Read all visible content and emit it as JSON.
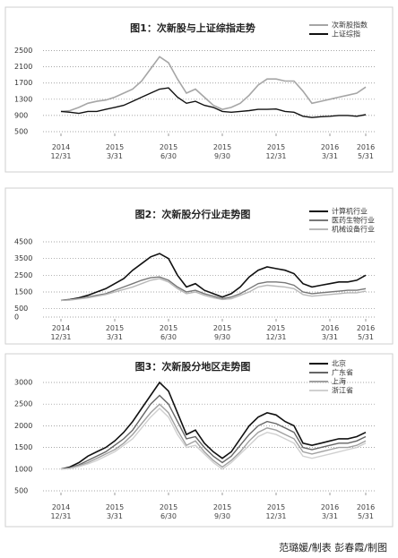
{
  "chart_data": [
    {
      "type": "line",
      "title": "图1：次新股与上证综指走势",
      "x": [
        0,
        0.5,
        1,
        1.5,
        2,
        2.5,
        3,
        3.5,
        4,
        4.5,
        5,
        5.5,
        6,
        6.5,
        7,
        7.5,
        8,
        8.5,
        9,
        9.5,
        10,
        10.5,
        11,
        11.5,
        12,
        12.5,
        13,
        13.5,
        14,
        14.5,
        15,
        15.5,
        16,
        16.5,
        17
      ],
      "xlim": [
        -1,
        17.5
      ],
      "xticks": [
        {
          "value": 0,
          "label": "2014 12/31"
        },
        {
          "value": 3,
          "label": "2015 3/31"
        },
        {
          "value": 6,
          "label": "2015 6/30"
        },
        {
          "value": 9,
          "label": "2015 9/30"
        },
        {
          "value": 12,
          "label": "2015 12/31"
        },
        {
          "value": 15,
          "label": "2016 3/31"
        },
        {
          "value": 17,
          "label": "2016 5/31"
        }
      ],
      "ylim": [
        500,
        2600
      ],
      "yticks": [
        2500,
        2100,
        1700,
        1300,
        900,
        500
      ],
      "grid": true,
      "legend": "top-right",
      "series": [
        {
          "name": "次新股指数",
          "color": "#a6a6a6",
          "values": [
            1000,
            1020,
            1100,
            1200,
            1250,
            1280,
            1350,
            1450,
            1550,
            1750,
            2050,
            2350,
            2200,
            1800,
            1450,
            1550,
            1350,
            1150,
            1050,
            1100,
            1200,
            1400,
            1650,
            1800,
            1800,
            1750,
            1750,
            1500,
            1200,
            1250,
            1300,
            1350,
            1400,
            1450,
            1600
          ]
        },
        {
          "name": "上证综指",
          "color": "#111111",
          "values": [
            1000,
            980,
            950,
            1000,
            1000,
            1050,
            1100,
            1150,
            1250,
            1350,
            1450,
            1550,
            1580,
            1350,
            1200,
            1250,
            1150,
            1100,
            1000,
            980,
            1000,
            1020,
            1050,
            1050,
            1060,
            1000,
            980,
            880,
            850,
            870,
            880,
            900,
            900,
            880,
            920
          ]
        }
      ]
    },
    {
      "type": "line",
      "title": "图2：次新股分行业走势图",
      "x": [
        0,
        0.5,
        1,
        1.5,
        2,
        2.5,
        3,
        3.5,
        4,
        4.5,
        5,
        5.5,
        6,
        6.5,
        7,
        7.5,
        8,
        8.5,
        9,
        9.5,
        10,
        10.5,
        11,
        11.5,
        12,
        12.5,
        13,
        13.5,
        14,
        14.5,
        15,
        15.5,
        16,
        16.5,
        17
      ],
      "xlim": [
        -1,
        17.5
      ],
      "xticks": [
        {
          "value": 0,
          "label": "2014 12/31"
        },
        {
          "value": 3,
          "label": "2015 3/31"
        },
        {
          "value": 6,
          "label": "2015 6/30"
        },
        {
          "value": 9,
          "label": "2015 9/30"
        },
        {
          "value": 12,
          "label": "2015 12/31"
        },
        {
          "value": 15,
          "label": "2016 3/31"
        },
        {
          "value": 17,
          "label": "2016 5/31"
        }
      ],
      "ylim": [
        0,
        4500
      ],
      "yticks": [
        4500,
        3500,
        2500,
        1500,
        500,
        0
      ],
      "grid": true,
      "legend": "top-right",
      "series": [
        {
          "name": "计算机行业",
          "color": "#111111",
          "values": [
            1000,
            1050,
            1150,
            1300,
            1500,
            1700,
            2000,
            2300,
            2800,
            3200,
            3600,
            3800,
            3500,
            2500,
            1800,
            2000,
            1600,
            1400,
            1200,
            1400,
            1800,
            2400,
            2800,
            3000,
            2900,
            2800,
            2600,
            2000,
            1800,
            1900,
            2000,
            2100,
            2100,
            2200,
            2500
          ]
        },
        {
          "name": "医药生物行业",
          "color": "#777777",
          "values": [
            1000,
            1030,
            1100,
            1200,
            1300,
            1400,
            1600,
            1800,
            2000,
            2200,
            2350,
            2400,
            2200,
            1800,
            1500,
            1600,
            1400,
            1250,
            1100,
            1200,
            1400,
            1700,
            2000,
            2100,
            2100,
            2050,
            1900,
            1500,
            1400,
            1450,
            1500,
            1550,
            1600,
            1600,
            1700
          ]
        },
        {
          "name": "机械设备行业",
          "color": "#b8b8b8",
          "values": [
            1000,
            1020,
            1080,
            1150,
            1250,
            1350,
            1500,
            1650,
            1800,
            2000,
            2200,
            2300,
            2100,
            1700,
            1400,
            1500,
            1300,
            1150,
            1050,
            1100,
            1300,
            1500,
            1800,
            1900,
            1850,
            1800,
            1700,
            1350,
            1250,
            1300,
            1350,
            1400,
            1450,
            1450,
            1550
          ]
        }
      ]
    },
    {
      "type": "line",
      "title": "图3：次新股分地区走势图",
      "x": [
        0,
        0.5,
        1,
        1.5,
        2,
        2.5,
        3,
        3.5,
        4,
        4.5,
        5,
        5.5,
        6,
        6.5,
        7,
        7.5,
        8,
        8.5,
        9,
        9.5,
        10,
        10.5,
        11,
        11.5,
        12,
        12.5,
        13,
        13.5,
        14,
        14.5,
        15,
        15.5,
        16,
        16.5,
        17
      ],
      "xlim": [
        -1,
        17.5
      ],
      "xticks": [
        {
          "value": 0,
          "label": "2014 12/31"
        },
        {
          "value": 3,
          "label": "2015 3/31"
        },
        {
          "value": 6,
          "label": "2015 6/30"
        },
        {
          "value": 9,
          "label": "2015 9/30"
        },
        {
          "value": 12,
          "label": "2015 12/31"
        },
        {
          "value": 15,
          "label": "2016 3/31"
        },
        {
          "value": 17,
          "label": "2016 5/31"
        }
      ],
      "ylim": [
        500,
        3000
      ],
      "yticks": [
        3000,
        2500,
        2000,
        1500,
        1000,
        500
      ],
      "grid": true,
      "legend": "top-right",
      "series": [
        {
          "name": "北京",
          "color": "#111111",
          "values": [
            1000,
            1050,
            1150,
            1300,
            1400,
            1500,
            1650,
            1850,
            2100,
            2400,
            2700,
            3000,
            2800,
            2300,
            1800,
            1900,
            1600,
            1400,
            1250,
            1400,
            1700,
            2000,
            2200,
            2300,
            2250,
            2100,
            2000,
            1600,
            1550,
            1600,
            1650,
            1700,
            1700,
            1750,
            1850
          ]
        },
        {
          "name": "广东省",
          "color": "#666666",
          "values": [
            1000,
            1030,
            1100,
            1200,
            1300,
            1400,
            1550,
            1700,
            1900,
            2200,
            2500,
            2700,
            2500,
            2100,
            1700,
            1750,
            1500,
            1300,
            1150,
            1300,
            1550,
            1800,
            2000,
            2100,
            2050,
            1950,
            1850,
            1500,
            1450,
            1500,
            1550,
            1600,
            1600,
            1650,
            1750
          ]
        },
        {
          "name": "上海",
          "color": "#a0a0a0",
          "values": [
            1000,
            1020,
            1080,
            1150,
            1250,
            1350,
            1450,
            1600,
            1800,
            2050,
            2300,
            2500,
            2300,
            1900,
            1550,
            1650,
            1400,
            1200,
            1050,
            1200,
            1400,
            1650,
            1850,
            1950,
            1900,
            1800,
            1700,
            1400,
            1350,
            1400,
            1450,
            1500,
            1500,
            1550,
            1650
          ]
        },
        {
          "name": "浙江省",
          "color": "#d0d0d0",
          "values": [
            1000,
            1010,
            1060,
            1120,
            1200,
            1300,
            1400,
            1550,
            1700,
            1950,
            2200,
            2400,
            2200,
            1800,
            1500,
            1550,
            1350,
            1150,
            1000,
            1150,
            1350,
            1550,
            1750,
            1850,
            1800,
            1700,
            1600,
            1300,
            1250,
            1300,
            1350,
            1400,
            1450,
            1500,
            1600
          ]
        }
      ]
    }
  ],
  "footer": "范璐媛/制表  彭春霞/制图"
}
